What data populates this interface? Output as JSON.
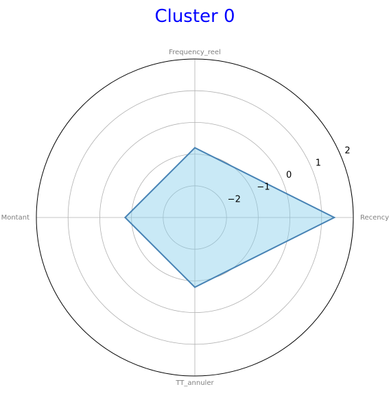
{
  "chart_data": {
    "type": "radar",
    "title": "Cluster 0",
    "axes": [
      "Recency",
      "Frequency_reel",
      "Montant",
      "TT_annuler"
    ],
    "series": [
      {
        "values": [
          1.4,
          -0.8,
          -0.8,
          -0.8
        ]
      }
    ],
    "rlim": [
      -3,
      2
    ],
    "radial_ticks": [
      -2,
      -1,
      0,
      1,
      2
    ],
    "radial_tick_labels": [
      "−2",
      "−1",
      "0",
      "1",
      "2"
    ],
    "grid": true,
    "colors": {
      "title": "#0000ff",
      "line": "#4682b4",
      "fill": "#87ceeb",
      "grid": "#b0b0b0",
      "axis_label": "#808080"
    }
  }
}
